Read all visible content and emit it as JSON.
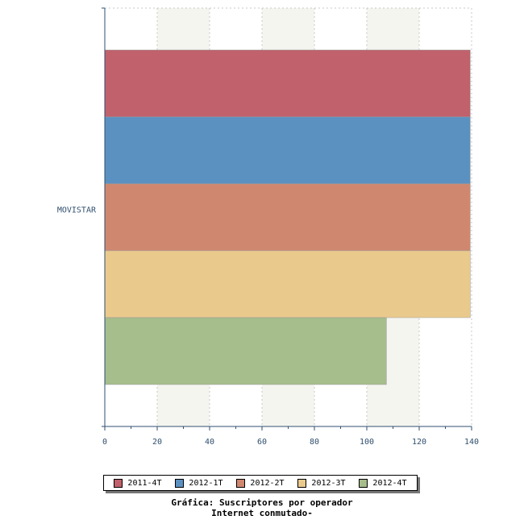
{
  "chart_data": {
    "type": "bar",
    "orientation": "horizontal",
    "categories": [
      "MOVISTAR"
    ],
    "series": [
      {
        "name": "2011-4T",
        "values": [
          139.5
        ],
        "color": "#c0616b"
      },
      {
        "name": "2012-1T",
        "values": [
          139.5
        ],
        "color": "#5b91c1"
      },
      {
        "name": "2012-2T",
        "values": [
          139.5
        ],
        "color": "#d0876f"
      },
      {
        "name": "2012-3T",
        "values": [
          139.5
        ],
        "color": "#eaca8c"
      },
      {
        "name": "2012-4T",
        "values": [
          107.5
        ],
        "color": "#a6bd8c"
      }
    ],
    "xticks": [
      0,
      20,
      40,
      60,
      80,
      100,
      120,
      140
    ],
    "xlim": [
      0,
      140
    ],
    "grid": true,
    "legend_position": "bottom",
    "title": "Gráfica: Suscriptores por operador",
    "subtitle": "Internet conmutado-"
  }
}
